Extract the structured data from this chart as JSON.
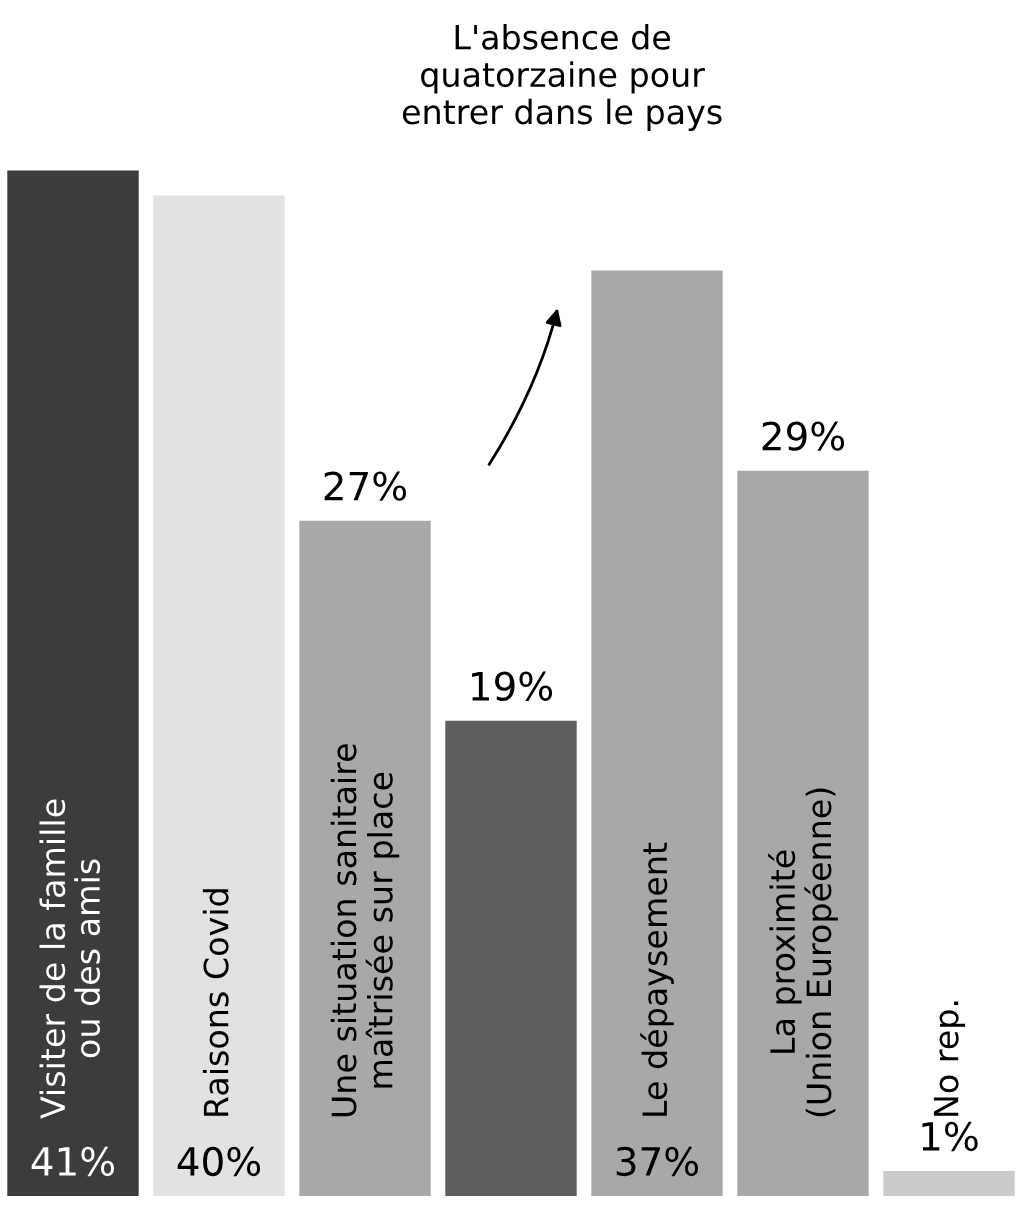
{
  "chart_data": {
    "type": "bar",
    "categories": [
      "Visiter de la famille\nou des amis",
      "Raisons Covid",
      "Une situation sanitaire\nmaîtrisée sur place",
      "L'absence de\nquatorzaine pour\nentrer dans le pays",
      "Le dépaysement",
      "La proximité\n(Union Européenne)",
      "No rep."
    ],
    "values": [
      41,
      40,
      27,
      19,
      37,
      29,
      1
    ],
    "value_labels": [
      "41%",
      "40%",
      "27%",
      "19%",
      "37%",
      "29%",
      "1%"
    ],
    "colors": [
      "#3c3c3c",
      "#e2e2e2",
      "#a8a8a8",
      "#5e5e5e",
      "#a8a8a8",
      "#a8a8a8",
      "#cbcbcb"
    ],
    "legend": false
  }
}
